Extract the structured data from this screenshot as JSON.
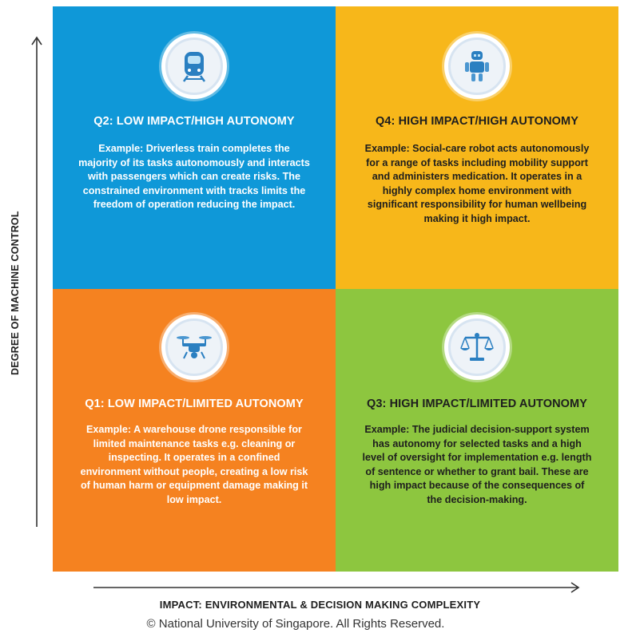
{
  "axes": {
    "y_label": "DEGREE OF MACHINE CONTROL",
    "x_label": "IMPACT: ENVIRONMENTAL & DECISION MAKING COMPLEXITY"
  },
  "quadrants": {
    "q2": {
      "title": "Q2: LOW IMPACT/HIGH AUTONOMY",
      "example_prefix": "Example",
      "example_text": ": Driverless train completes the majority of its tasks autonomously and interacts with passengers which can create risks. The constrained environment with tracks limits the freedom of operation reducing the impact.",
      "icon": "train-icon",
      "color": "#0f98d8"
    },
    "q4": {
      "title": "Q4: HIGH IMPACT/HIGH AUTONOMY",
      "example_prefix": "Example",
      "example_text": ": Social-care robot acts autonomously for a range of tasks including mobility support and administers medication. It operates in a highly complex home environment with significant responsibility for human wellbeing making it high impact.",
      "icon": "robot-icon",
      "color": "#f7b71a"
    },
    "q1": {
      "title": "Q1: LOW IMPACT/LIMITED AUTONOMY",
      "example_prefix": "Example",
      "example_text": ": A warehouse drone responsible for limited maintenance tasks e.g. cleaning or inspecting. It operates in a confined environment without people, creating a low risk of human harm or equipment damage making it low impact.",
      "icon": "drone-icon",
      "color": "#f58220"
    },
    "q3": {
      "title": "Q3: HIGH IMPACT/LIMITED AUTONOMY",
      "example_prefix": "Example",
      "example_text": ": The judicial decision-support system has autonomy for selected tasks and a high level of oversight for implementation e.g. length of sentence or whether to grant bail. These are high impact because of the consequences of the decision-making.",
      "icon": "scales-icon",
      "color": "#8dc63f"
    }
  },
  "footer": {
    "copyright": "© National University of Singapore. All Rights Reserved."
  }
}
